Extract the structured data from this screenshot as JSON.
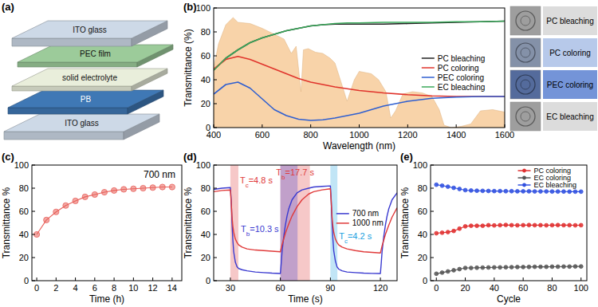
{
  "diagram": {
    "title": "(a)",
    "layers": [
      {
        "label": "ITO glass",
        "color": "#cdd9e7"
      },
      {
        "label": "PEC film",
        "color": "#9ccb9a"
      },
      {
        "label": "solid electrolyte",
        "color": "#e9eedb"
      },
      {
        "label": "PB",
        "color": "#3f78b5"
      },
      {
        "label": "ITO glass",
        "color": "#cdd9e7"
      }
    ]
  },
  "chart_data": [
    {
      "type": "line",
      "title": "(b)",
      "x_label": "Wavelength (nm)",
      "y_label": "Transmittance (%)",
      "xlim": [
        400,
        1600
      ],
      "ylim": [
        0,
        100
      ],
      "xticks": [
        400,
        600,
        800,
        1000,
        1200,
        1400,
        1600
      ],
      "yticks": [
        0,
        20,
        40,
        60,
        80,
        100
      ],
      "legend": "right",
      "series": [
        {
          "type": "area",
          "color": "#f6c48c",
          "x": [
            400,
            420,
            450,
            480,
            500,
            550,
            600,
            650,
            690,
            720,
            740,
            760,
            770,
            790,
            820,
            850,
            880,
            900,
            930,
            950,
            980,
            1000,
            1050,
            1080,
            1110,
            1130,
            1150,
            1180,
            1220,
            1260,
            1300,
            1330,
            1350,
            1380,
            1420,
            1460,
            1500,
            1550,
            1600
          ],
          "values": [
            50,
            70,
            86,
            92,
            88,
            87,
            83,
            78,
            74,
            62,
            68,
            30,
            65,
            66,
            63,
            62,
            58,
            54,
            35,
            22,
            40,
            47,
            45,
            40,
            30,
            8,
            14,
            28,
            30,
            29,
            26,
            15,
            2,
            0,
            1,
            3,
            14,
            15,
            13
          ]
        },
        {
          "name": "PC bleaching",
          "color": "#222222",
          "x": [
            400,
            450,
            500,
            550,
            600,
            650,
            700,
            750,
            800,
            850,
            900,
            950,
            1000,
            1100,
            1200,
            1300,
            1400,
            1500,
            1600
          ],
          "values": [
            48,
            58,
            65,
            71,
            75,
            78,
            81,
            83,
            85,
            86,
            86.5,
            86.5,
            86.5,
            86.5,
            87,
            87.5,
            88,
            88.5,
            89
          ]
        },
        {
          "name": "PC coloring",
          "color": "#e0342c",
          "x": [
            400,
            450,
            500,
            550,
            600,
            650,
            700,
            750,
            800,
            850,
            900,
            950,
            1000,
            1100,
            1200,
            1300,
            1400,
            1500,
            1600
          ],
          "values": [
            49,
            57,
            59.5,
            57,
            53,
            49,
            45,
            41,
            38,
            36,
            34,
            32.5,
            31,
            29,
            27.5,
            26.5,
            26,
            26,
            26
          ]
        },
        {
          "name": "PEC coloring",
          "color": "#2f5fd0",
          "x": [
            400,
            450,
            500,
            550,
            600,
            650,
            700,
            750,
            800,
            850,
            900,
            950,
            1000,
            1100,
            1200,
            1300,
            1400,
            1500,
            1600
          ],
          "values": [
            28,
            36,
            38,
            33,
            24,
            15,
            10,
            7,
            6,
            6.5,
            8,
            10,
            12,
            18,
            22,
            24.5,
            25.5,
            26,
            26
          ]
        },
        {
          "name": "EC bleaching",
          "color": "#3aa85a",
          "x": [
            400,
            450,
            500,
            550,
            600,
            650,
            700,
            750,
            800,
            850,
            900,
            950,
            1000,
            1100,
            1200,
            1300,
            1400,
            1500,
            1600
          ],
          "values": [
            48,
            58,
            65,
            71,
            75,
            78,
            81,
            83,
            85,
            86,
            87,
            87.5,
            87.5,
            88,
            88,
            88,
            88.5,
            88.5,
            89
          ]
        }
      ],
      "photos": [
        {
          "label": "PC bleaching",
          "color": "#dcdcdc"
        },
        {
          "label": "PC coloring",
          "color": "#b7c9ea"
        },
        {
          "label": "PEC coloring",
          "color": "#7494d8"
        },
        {
          "label": "EC bleaching",
          "color": "#dcdcdc"
        }
      ]
    },
    {
      "type": "line",
      "title": "(c)",
      "x_label": "Time (h)",
      "y_label": "Transmittance %",
      "xlim": [
        -0.5,
        15
      ],
      "ylim": [
        0,
        100
      ],
      "xticks": [
        0,
        2,
        4,
        6,
        8,
        10,
        12,
        14
      ],
      "yticks": [
        0,
        20,
        40,
        60,
        80,
        100
      ],
      "x": [
        0,
        1,
        2,
        3,
        4,
        5,
        6,
        7,
        8,
        9,
        10,
        11,
        12,
        13,
        14
      ],
      "series": [
        {
          "color": "#e8605a",
          "marker": "circle",
          "values": [
            40,
            52.5,
            59.5,
            65,
            69,
            72.5,
            74.5,
            76.5,
            78,
            79,
            79.5,
            80,
            80.5,
            81,
            81
          ]
        }
      ],
      "annotations": [
        {
          "text": "700 nm"
        }
      ]
    },
    {
      "type": "line",
      "title": "(d)",
      "x_label": "Time (s)",
      "y_label": "Transmittance %",
      "xlim": [
        20,
        130
      ],
      "ylim": [
        0,
        100
      ],
      "xticks": [
        30,
        60,
        90,
        120
      ],
      "yticks": [
        0,
        20,
        40,
        60,
        80,
        100
      ],
      "legend": "right",
      "x": [
        20,
        25,
        30,
        30.5,
        31,
        31.5,
        32,
        33,
        34,
        35,
        37,
        40,
        45,
        50,
        55,
        60,
        60.5,
        61,
        62,
        63,
        64,
        65,
        67,
        70,
        73,
        77,
        80,
        85,
        90,
        90.5,
        91,
        91.5,
        92,
        93,
        94,
        95,
        97,
        100,
        105,
        110,
        115,
        120,
        120.5,
        121,
        122,
        123,
        124,
        125,
        127,
        130
      ],
      "series": [
        {
          "name": "700 nm",
          "color": "#3a3ad0",
          "values": [
            79,
            80,
            80.5,
            70,
            50,
            35,
            25,
            16,
            12,
            10.5,
            9.5,
            8.5,
            7.5,
            7,
            6.5,
            6.2,
            15,
            25,
            38,
            48,
            56,
            62,
            70,
            76,
            78.5,
            80,
            81,
            81.5,
            82,
            70,
            50,
            36,
            26,
            17,
            12,
            10,
            8.5,
            7.5,
            7,
            6.5,
            6.3,
            6.2,
            15,
            25,
            38,
            48,
            56,
            62,
            70,
            76
          ]
        },
        {
          "name": "1000 nm",
          "color": "#e03a3a",
          "values": [
            77,
            78,
            78.5,
            68,
            55,
            47,
            42,
            36,
            33,
            31,
            29,
            27.5,
            26.5,
            26,
            25.5,
            25,
            28,
            31,
            36,
            41,
            45,
            49,
            56,
            64,
            70,
            75,
            77,
            78.5,
            79.5,
            68,
            55,
            47,
            42,
            36,
            33,
            31,
            29,
            27.5,
            26,
            25,
            24.5,
            24,
            27,
            30,
            35,
            40,
            44,
            48,
            55,
            63
          ]
        }
      ],
      "bands": [
        {
          "label": "Tc=4.8 s",
          "start": 30,
          "end": 34.8,
          "color": "#e03a3a"
        },
        {
          "label": "Tb=17.7 s",
          "start": 60,
          "end": 77.7,
          "color": "#e03a3a"
        },
        {
          "label": "Tb=10.3 s",
          "start": 60,
          "end": 70.3,
          "color": "#3a3ad0"
        },
        {
          "label": "Tc=4.2 s",
          "start": 90,
          "end": 94.2,
          "color": "#20a0e0"
        }
      ]
    },
    {
      "type": "line",
      "title": "(e)",
      "x_label": "Cycle",
      "y_label": "Transmittance %",
      "xlim": [
        -4,
        104
      ],
      "ylim": [
        0,
        100
      ],
      "xticks": [
        0,
        20,
        40,
        60,
        80,
        100
      ],
      "yticks": [
        0,
        20,
        40,
        60,
        80,
        100
      ],
      "legend": "upper right",
      "x": [
        0,
        4,
        8,
        12,
        16,
        20,
        24,
        28,
        32,
        36,
        40,
        44,
        48,
        52,
        56,
        60,
        64,
        68,
        72,
        76,
        80,
        84,
        88,
        92,
        96,
        100
      ],
      "series": [
        {
          "name": "PC coloring",
          "color": "#e03030",
          "marker": "circle",
          "values": [
            41,
            41.5,
            42,
            43,
            45,
            47,
            47.5,
            47.5,
            47.5,
            48,
            47.8,
            48,
            48.2,
            48,
            47.9,
            48,
            48.1,
            48,
            48,
            47.9,
            48,
            48.1,
            48,
            48,
            47.9,
            48
          ]
        },
        {
          "name": "EC coloring",
          "color": "#555555",
          "marker": "circle",
          "values": [
            6,
            7,
            8,
            9,
            10,
            11,
            11,
            11.2,
            11.3,
            11.4,
            11.5,
            11.5,
            11.6,
            11.7,
            11.8,
            11.8,
            11.9,
            12,
            12,
            12,
            12.1,
            12.1,
            12.2,
            12.2,
            12.3,
            12.3
          ]
        },
        {
          "name": "EC bleaching",
          "color": "#3050e0",
          "marker": "circle",
          "values": [
            83,
            82.2,
            81.3,
            80.3,
            79.3,
            78.3,
            78,
            77.8,
            77.7,
            77.6,
            77.5,
            77.5,
            77.4,
            77.4,
            77.3,
            77.3,
            77.3,
            77.2,
            77.2,
            77.2,
            77.1,
            77.1,
            77.1,
            77,
            77,
            77
          ]
        }
      ]
    }
  ]
}
